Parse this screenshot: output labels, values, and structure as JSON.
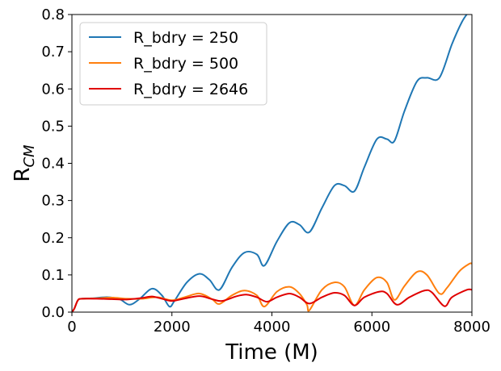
{
  "chart_data": {
    "type": "line",
    "xlabel": "Time (M)",
    "ylabel_main": "R",
    "ylabel_sub": "CM",
    "xlim": [
      0,
      8000
    ],
    "ylim": [
      0,
      0.8
    ],
    "xticks": [
      0,
      2000,
      4000,
      6000,
      8000
    ],
    "yticks": [
      0.0,
      0.1,
      0.2,
      0.3,
      0.4,
      0.5,
      0.6,
      0.7,
      0.8
    ],
    "xtick_labels": [
      "0",
      "2000",
      "4000",
      "6000",
      "8000"
    ],
    "ytick_labels": [
      "0.0",
      "0.1",
      "0.2",
      "0.3",
      "0.4",
      "0.5",
      "0.6",
      "0.7",
      "0.8"
    ],
    "grid": false,
    "legend_position": "top-left",
    "series": [
      {
        "name": "R_bdry = 250",
        "color": "#1f77b4",
        "x": [
          0,
          50,
          120,
          200,
          400,
          700,
          950,
          1150,
          1350,
          1600,
          1800,
          1950,
          2050,
          2300,
          2550,
          2750,
          2950,
          3200,
          3450,
          3700,
          3850,
          4100,
          4350,
          4550,
          4750,
          5000,
          5250,
          5450,
          5650,
          5850,
          6100,
          6300,
          6450,
          6650,
          6900,
          7100,
          7350,
          7600,
          7800,
          7950,
          8000
        ],
        "y": [
          0.0,
          0.01,
          0.032,
          0.036,
          0.037,
          0.04,
          0.035,
          0.02,
          0.035,
          0.063,
          0.045,
          0.015,
          0.03,
          0.08,
          0.103,
          0.087,
          0.06,
          0.12,
          0.16,
          0.155,
          0.125,
          0.19,
          0.24,
          0.235,
          0.215,
          0.28,
          0.34,
          0.34,
          0.325,
          0.39,
          0.465,
          0.465,
          0.46,
          0.54,
          0.62,
          0.63,
          0.63,
          0.72,
          0.78,
          0.81,
          0.82
        ]
      },
      {
        "name": "R_bdry = 500",
        "color": "#ff7f0e",
        "x": [
          0,
          50,
          120,
          200,
          500,
          800,
          1100,
          1400,
          1700,
          2000,
          2250,
          2550,
          2800,
          2950,
          3200,
          3450,
          3700,
          3850,
          4100,
          4350,
          4550,
          4700,
          4750,
          5000,
          5250,
          5450,
          5650,
          5850,
          6100,
          6300,
          6450,
          6650,
          6900,
          7100,
          7350,
          7500,
          7750,
          7950,
          8000
        ],
        "y": [
          0.0,
          0.01,
          0.032,
          0.036,
          0.037,
          0.039,
          0.036,
          0.036,
          0.04,
          0.032,
          0.04,
          0.05,
          0.035,
          0.022,
          0.045,
          0.058,
          0.045,
          0.015,
          0.055,
          0.068,
          0.05,
          0.02,
          0.005,
          0.06,
          0.08,
          0.068,
          0.018,
          0.06,
          0.093,
          0.08,
          0.033,
          0.07,
          0.108,
          0.1,
          0.05,
          0.065,
          0.11,
          0.13,
          0.13
        ]
      },
      {
        "name": "R_bdry = 2646",
        "color": "#e00000",
        "x": [
          0,
          50,
          120,
          200,
          500,
          800,
          1100,
          1400,
          1600,
          1800,
          2000,
          2200,
          2550,
          2800,
          3000,
          3300,
          3500,
          3700,
          3900,
          4100,
          4350,
          4550,
          4750,
          5000,
          5250,
          5450,
          5650,
          5850,
          6150,
          6300,
          6500,
          6750,
          7050,
          7200,
          7450,
          7600,
          7900,
          8000
        ],
        "y": [
          0.0,
          0.01,
          0.032,
          0.036,
          0.036,
          0.035,
          0.034,
          0.038,
          0.042,
          0.036,
          0.03,
          0.035,
          0.043,
          0.035,
          0.03,
          0.043,
          0.047,
          0.04,
          0.028,
          0.04,
          0.05,
          0.04,
          0.023,
          0.04,
          0.052,
          0.045,
          0.018,
          0.04,
          0.055,
          0.05,
          0.02,
          0.04,
          0.058,
          0.053,
          0.016,
          0.04,
          0.06,
          0.06
        ]
      }
    ]
  }
}
